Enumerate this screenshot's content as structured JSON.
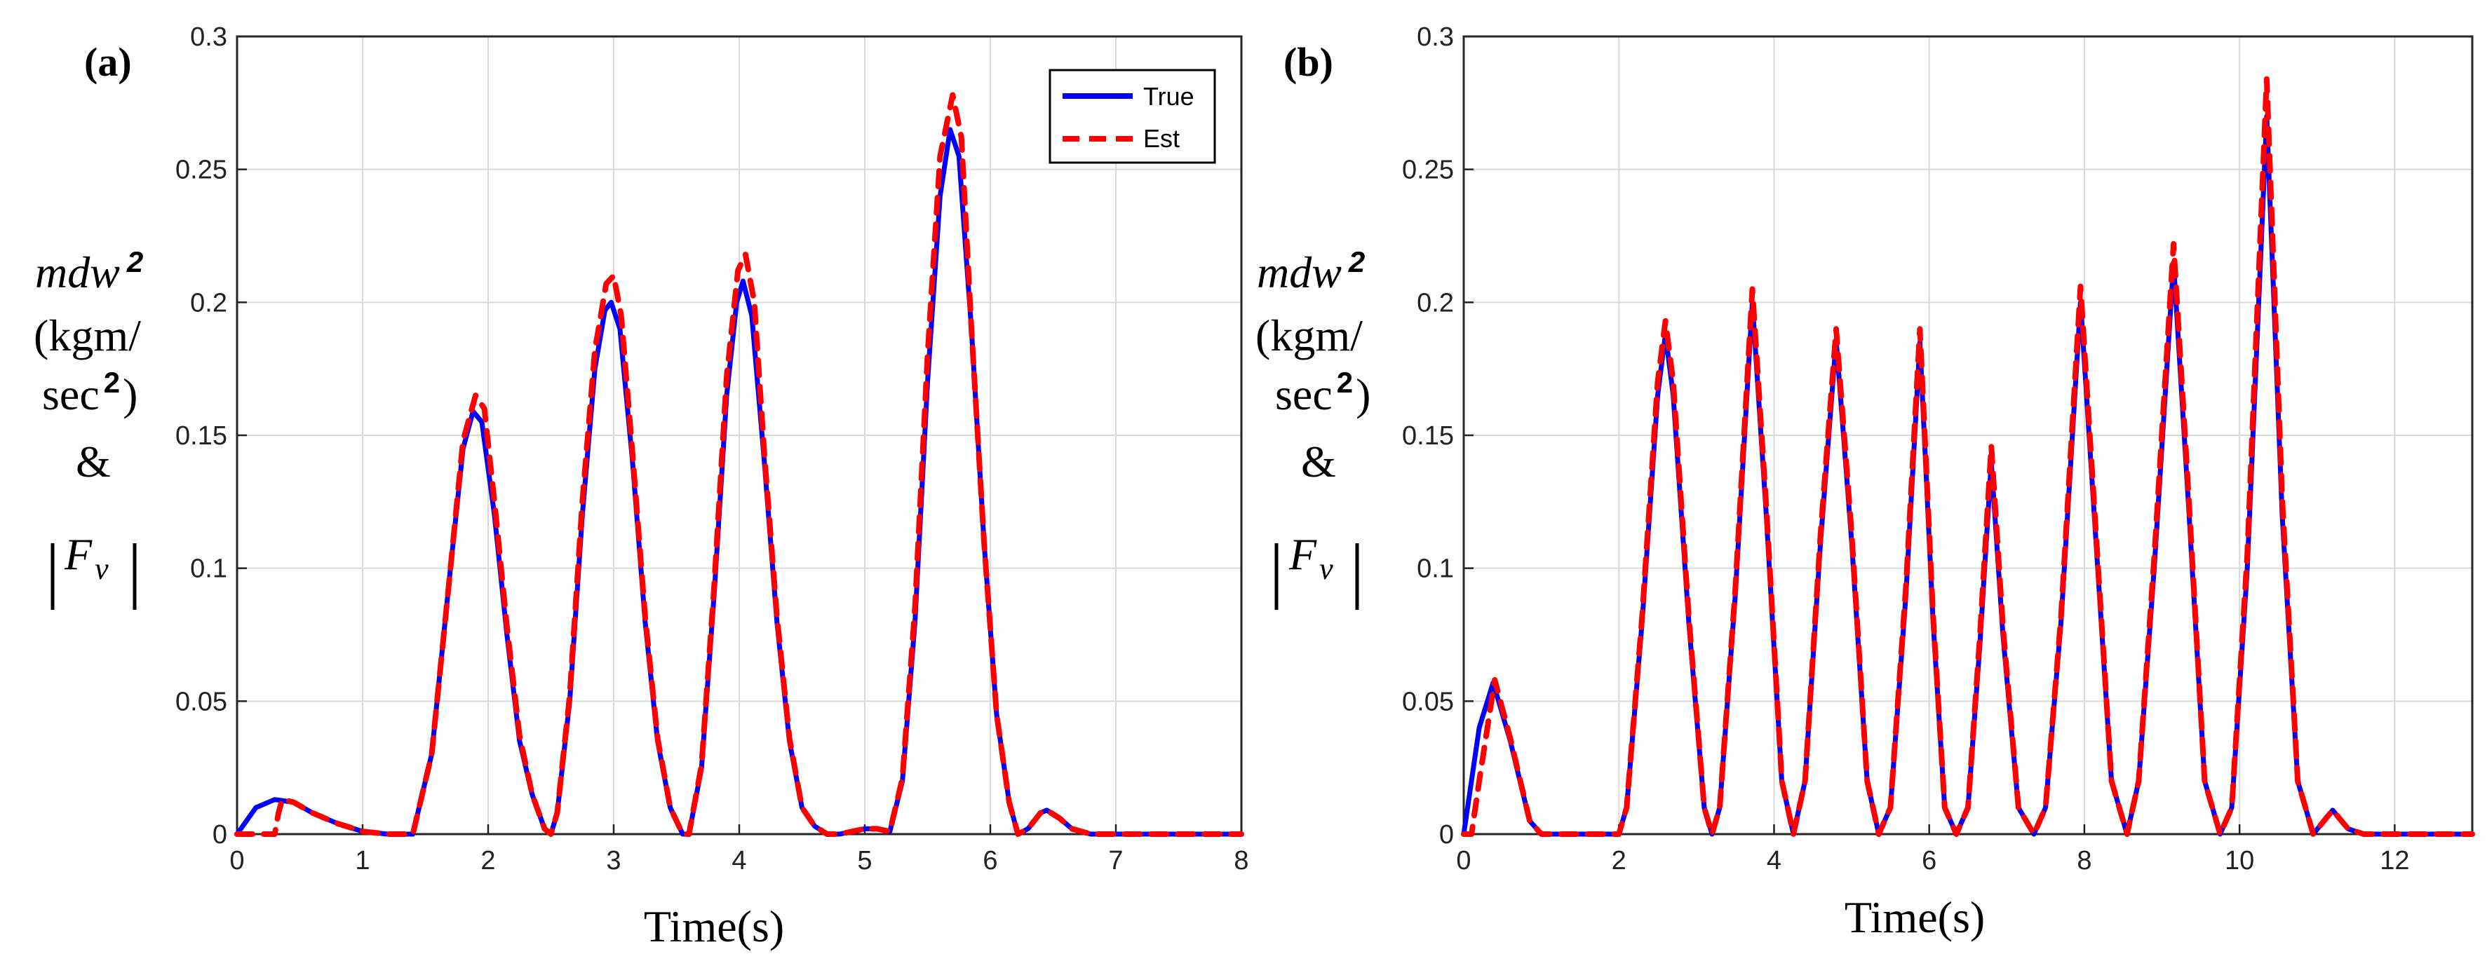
{
  "chart_data": [
    {
      "type": "line",
      "panel_label": "(a)",
      "xlabel": "Time(s)",
      "ylabel": {
        "symbol": "mdw",
        "superscript": "2",
        "unit_line1": "(kgm/",
        "unit_line2": "sec",
        "unit_sup": "2",
        "unit_close": ")",
        "ampersand": "&",
        "force_symbol": "F",
        "force_subscript": "v"
      },
      "xlim": [
        0,
        8
      ],
      "ylim": [
        0,
        0.3
      ],
      "xticks": [
        "0",
        "1",
        "2",
        "3",
        "4",
        "5",
        "6",
        "7",
        "8"
      ],
      "yticks": [
        "0",
        "0.05",
        "0.1",
        "0.15",
        "0.2",
        "0.25",
        "0.3"
      ],
      "grid": true,
      "legend": {
        "position": "top-right",
        "entries": [
          "True",
          "Est"
        ]
      },
      "series": [
        {
          "name": "True",
          "color": "#0000ff",
          "style": "solid",
          "x": [
            0,
            0.15,
            0.3,
            0.45,
            0.6,
            0.8,
            1.0,
            1.2,
            1.4,
            1.55,
            1.7,
            1.8,
            1.88,
            1.95,
            2.05,
            2.15,
            2.25,
            2.35,
            2.45,
            2.5,
            2.55,
            2.65,
            2.75,
            2.85,
            2.93,
            2.98,
            3.05,
            3.15,
            3.25,
            3.35,
            3.45,
            3.55,
            3.6,
            3.7,
            3.8,
            3.9,
            3.98,
            4.03,
            4.1,
            4.2,
            4.3,
            4.4,
            4.5,
            4.6,
            4.7,
            4.8,
            4.9,
            5.0,
            5.1,
            5.2,
            5.3,
            5.4,
            5.5,
            5.6,
            5.68,
            5.75,
            5.85,
            5.95,
            6.05,
            6.15,
            6.22,
            6.3,
            6.4,
            6.45,
            6.55,
            6.65,
            6.8,
            7.0,
            7.5,
            8.0
          ],
          "y": [
            0.0,
            0.01,
            0.013,
            0.012,
            0.008,
            0.004,
            0.001,
            0.0,
            0.0,
            0.03,
            0.1,
            0.145,
            0.159,
            0.155,
            0.12,
            0.075,
            0.035,
            0.015,
            0.002,
            0.0,
            0.008,
            0.05,
            0.12,
            0.175,
            0.197,
            0.2,
            0.19,
            0.14,
            0.08,
            0.035,
            0.01,
            0.0,
            0.0,
            0.025,
            0.09,
            0.165,
            0.2,
            0.208,
            0.195,
            0.14,
            0.08,
            0.035,
            0.01,
            0.003,
            0.0,
            0.0,
            0.001,
            0.002,
            0.002,
            0.001,
            0.02,
            0.08,
            0.17,
            0.24,
            0.265,
            0.255,
            0.19,
            0.11,
            0.045,
            0.012,
            0.0,
            0.002,
            0.008,
            0.009,
            0.006,
            0.002,
            0.0,
            0.0,
            0.0,
            0.0
          ]
        },
        {
          "name": "Est",
          "color": "#ff0000",
          "style": "dashed",
          "x": [
            0,
            0.15,
            0.3,
            0.33,
            0.36,
            0.45,
            0.6,
            0.8,
            1.0,
            1.2,
            1.4,
            1.55,
            1.7,
            1.8,
            1.9,
            1.97,
            2.05,
            2.15,
            2.25,
            2.35,
            2.45,
            2.5,
            2.55,
            2.65,
            2.75,
            2.85,
            2.94,
            3.0,
            3.06,
            3.15,
            3.25,
            3.35,
            3.45,
            3.55,
            3.6,
            3.7,
            3.8,
            3.9,
            3.99,
            4.05,
            4.12,
            4.2,
            4.3,
            4.4,
            4.5,
            4.6,
            4.7,
            4.8,
            4.9,
            5.0,
            5.1,
            5.2,
            5.3,
            5.4,
            5.5,
            5.6,
            5.7,
            5.77,
            5.85,
            5.95,
            6.05,
            6.15,
            6.22,
            6.3,
            6.4,
            6.45,
            6.55,
            6.65,
            6.8,
            7.0,
            7.5,
            8.0
          ],
          "y": [
            0.0,
            0.0,
            0.0,
            0.008,
            0.013,
            0.012,
            0.008,
            0.004,
            0.001,
            0.0,
            0.0,
            0.03,
            0.1,
            0.148,
            0.165,
            0.16,
            0.125,
            0.078,
            0.037,
            0.015,
            0.002,
            0.0,
            0.008,
            0.052,
            0.125,
            0.182,
            0.207,
            0.21,
            0.195,
            0.143,
            0.082,
            0.036,
            0.01,
            0.0,
            0.0,
            0.026,
            0.093,
            0.172,
            0.212,
            0.218,
            0.2,
            0.143,
            0.082,
            0.036,
            0.01,
            0.003,
            0.0,
            0.0,
            0.001,
            0.002,
            0.002,
            0.001,
            0.021,
            0.085,
            0.18,
            0.255,
            0.278,
            0.262,
            0.19,
            0.11,
            0.045,
            0.012,
            0.0,
            0.002,
            0.008,
            0.009,
            0.006,
            0.002,
            0.0,
            0.0,
            0.0,
            0.0
          ]
        }
      ]
    },
    {
      "type": "line",
      "panel_label": "(b)",
      "xlabel": "Time(s)",
      "ylabel": {
        "symbol": "mdw",
        "superscript": "2",
        "unit_line1": "(kgm/",
        "unit_line2": "sec",
        "unit_sup": "2",
        "unit_close": ")",
        "ampersand": "&",
        "force_symbol": "F",
        "force_subscript": "v"
      },
      "xlim": [
        0,
        13
      ],
      "ylim": [
        0,
        0.3
      ],
      "xticks": [
        "0",
        "2",
        "4",
        "6",
        "8",
        "10",
        "12"
      ],
      "yticks": [
        "0",
        "0.05",
        "0.1",
        "0.15",
        "0.2",
        "0.25",
        "0.3"
      ],
      "grid": true,
      "series": [
        {
          "name": "True",
          "color": "#0000ff",
          "style": "solid",
          "peaks": [
            [
              0.38,
              0.057,
              0.22
            ],
            [
              2.6,
              0.188,
              0.2
            ],
            [
              3.72,
              0.2,
              0.2
            ],
            [
              4.8,
              0.186,
              0.2
            ],
            [
              5.88,
              0.185,
              0.18
            ],
            [
              6.8,
              0.14,
              0.19
            ],
            [
              7.95,
              0.2,
              0.2
            ],
            [
              9.15,
              0.215,
              0.2
            ],
            [
              10.35,
              0.27,
              0.17
            ],
            [
              11.2,
              0.009,
              0.12
            ]
          ],
          "x": [
            0,
            0.2,
            0.38,
            0.6,
            0.85,
            1.0,
            2.0,
            2.1,
            2.3,
            2.5,
            2.6,
            2.7,
            2.9,
            3.1,
            3.2,
            3.3,
            3.5,
            3.72,
            3.9,
            4.1,
            4.25,
            4.4,
            4.6,
            4.8,
            5.0,
            5.2,
            5.35,
            5.5,
            5.7,
            5.88,
            6.05,
            6.2,
            6.35,
            6.5,
            6.65,
            6.8,
            6.95,
            7.15,
            7.35,
            7.5,
            7.7,
            7.95,
            8.15,
            8.35,
            8.55,
            8.7,
            8.9,
            9.15,
            9.35,
            9.55,
            9.75,
            9.9,
            10.1,
            10.35,
            10.55,
            10.75,
            10.95,
            11.2,
            11.4,
            11.6,
            13.0
          ],
          "y": [
            0.0,
            0.04,
            0.057,
            0.035,
            0.005,
            0.0,
            0.0,
            0.01,
            0.08,
            0.165,
            0.188,
            0.165,
            0.08,
            0.01,
            0.0,
            0.01,
            0.09,
            0.2,
            0.12,
            0.02,
            0.0,
            0.02,
            0.11,
            0.186,
            0.11,
            0.02,
            0.0,
            0.01,
            0.09,
            0.185,
            0.08,
            0.01,
            0.0,
            0.01,
            0.07,
            0.14,
            0.075,
            0.01,
            0.0,
            0.01,
            0.08,
            0.2,
            0.11,
            0.02,
            0.0,
            0.02,
            0.1,
            0.215,
            0.12,
            0.02,
            0.0,
            0.01,
            0.1,
            0.27,
            0.12,
            0.02,
            0.0,
            0.009,
            0.002,
            0.0,
            0.0
          ]
        },
        {
          "name": "Est",
          "color": "#ff0000",
          "style": "dashed",
          "x": [
            0,
            0.1,
            0.2,
            0.4,
            0.6,
            0.85,
            1.0,
            2.0,
            2.1,
            2.3,
            2.5,
            2.6,
            2.7,
            2.9,
            3.1,
            3.2,
            3.3,
            3.5,
            3.72,
            3.9,
            4.1,
            4.25,
            4.4,
            4.6,
            4.8,
            5.0,
            5.2,
            5.35,
            5.5,
            5.7,
            5.88,
            6.05,
            6.2,
            6.35,
            6.5,
            6.65,
            6.8,
            6.95,
            7.15,
            7.35,
            7.5,
            7.7,
            7.95,
            8.15,
            8.35,
            8.55,
            8.7,
            8.9,
            9.15,
            9.35,
            9.55,
            9.75,
            9.9,
            10.1,
            10.35,
            10.55,
            10.75,
            10.95,
            11.2,
            11.4,
            11.6,
            13.0
          ],
          "y": [
            0.0,
            0.0,
            0.02,
            0.058,
            0.036,
            0.005,
            0.0,
            0.0,
            0.01,
            0.082,
            0.17,
            0.193,
            0.17,
            0.082,
            0.01,
            0.0,
            0.01,
            0.092,
            0.205,
            0.123,
            0.02,
            0.0,
            0.02,
            0.113,
            0.19,
            0.113,
            0.02,
            0.0,
            0.01,
            0.093,
            0.19,
            0.082,
            0.01,
            0.0,
            0.01,
            0.073,
            0.146,
            0.078,
            0.01,
            0.0,
            0.01,
            0.082,
            0.206,
            0.113,
            0.02,
            0.0,
            0.02,
            0.104,
            0.222,
            0.124,
            0.02,
            0.0,
            0.01,
            0.105,
            0.284,
            0.126,
            0.02,
            0.0,
            0.009,
            0.002,
            0.0,
            0.0
          ]
        }
      ]
    }
  ]
}
